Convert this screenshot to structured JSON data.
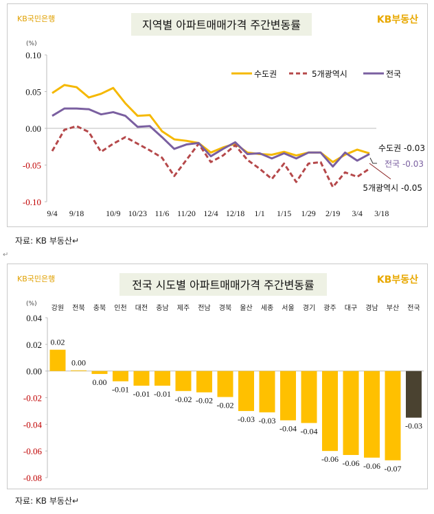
{
  "colors": {
    "metro": "#F5B800",
    "five": "#B5484A",
    "national": "#7A5FA0",
    "bar": "#FFC000",
    "bar_total": "#4A4230",
    "title_bg": "#EEF1E4",
    "negative_tick": "#C00000"
  },
  "logos": {
    "bank": "KB국민은행",
    "realestate": "KB부동산"
  },
  "source": "자료: KB 부동산↵",
  "return_mark": "↵",
  "chart_data": [
    {
      "type": "line",
      "title": "지역별 아파트매매가격 주간변동률",
      "ylabel": "(%)",
      "ylim": [
        -0.1,
        0.1
      ],
      "yticks": [
        "0.10",
        "0.05",
        "0.00",
        "-0.05",
        "-0.10"
      ],
      "xtick_labels": [
        "9/4",
        "",
        "9/18",
        "",
        "",
        "10/9",
        "",
        "10/23",
        "",
        "11/6",
        "",
        "11/20",
        "",
        "12/4",
        "",
        "12/18",
        "",
        "1/1",
        "",
        "1/15",
        "",
        "1/29",
        "",
        "2/19",
        "",
        "3/4",
        "",
        "3/18"
      ],
      "legend_position": "top-right",
      "series": [
        {
          "name": "수도권",
          "style": "solid",
          "values": [
            0.048,
            0.059,
            0.056,
            0.042,
            0.047,
            0.055,
            0.034,
            0.017,
            0.018,
            -0.004,
            -0.015,
            -0.017,
            -0.02,
            -0.033,
            -0.026,
            -0.021,
            -0.033,
            -0.035,
            -0.036,
            -0.032,
            -0.037,
            -0.033,
            -0.033,
            -0.046,
            -0.036,
            -0.029,
            -0.034
          ],
          "end_label": "수도권 -0.03"
        },
        {
          "name": "5개광역시",
          "style": "dashed",
          "values": [
            -0.031,
            -0.002,
            0.003,
            -0.005,
            -0.032,
            -0.021,
            -0.012,
            -0.021,
            -0.03,
            -0.04,
            -0.065,
            -0.043,
            -0.021,
            -0.046,
            -0.037,
            -0.023,
            -0.043,
            -0.055,
            -0.069,
            -0.048,
            -0.073,
            -0.048,
            -0.046,
            -0.08,
            -0.06,
            -0.066,
            -0.055
          ],
          "end_label": "5개광역시 -0.05"
        },
        {
          "name": "전국",
          "style": "solid",
          "values": [
            0.017,
            0.027,
            0.027,
            0.026,
            0.019,
            0.022,
            0.017,
            0.002,
            0.003,
            -0.012,
            -0.028,
            -0.022,
            -0.02,
            -0.038,
            -0.028,
            -0.019,
            -0.035,
            -0.034,
            -0.041,
            -0.034,
            -0.041,
            -0.033,
            -0.033,
            -0.052,
            -0.033,
            -0.044,
            -0.035
          ],
          "end_label": "전국 -0.03"
        }
      ]
    },
    {
      "type": "bar",
      "title": "전국 시도별 아파트매매가격 주간변동률",
      "ylabel": "(%)",
      "ylim": [
        -0.08,
        0.04
      ],
      "yticks": [
        "0.04",
        "0.02",
        "0.00",
        "-0.02",
        "-0.04",
        "-0.06",
        "-0.08"
      ],
      "categories": [
        "강원",
        "전북",
        "충북",
        "인천",
        "대전",
        "충남",
        "제주",
        "전남",
        "경북",
        "울산",
        "세종",
        "서울",
        "경기",
        "광주",
        "대구",
        "경남",
        "부산",
        "전국"
      ],
      "values": [
        0.016,
        0.0005,
        -0.0022,
        -0.0077,
        -0.011,
        -0.011,
        -0.015,
        -0.016,
        -0.0195,
        -0.03,
        -0.031,
        -0.037,
        -0.039,
        -0.06,
        -0.063,
        -0.065,
        -0.067,
        -0.035
      ],
      "labels": [
        "0.02",
        "0.00",
        "0.00",
        "-0.01",
        "-0.01",
        "-0.01",
        "-0.02",
        "-0.02",
        "-0.02",
        "-0.03",
        "-0.03",
        "-0.04",
        "-0.04",
        "-0.06",
        "-0.06",
        "-0.06",
        "-0.07",
        "-0.03"
      ]
    }
  ]
}
